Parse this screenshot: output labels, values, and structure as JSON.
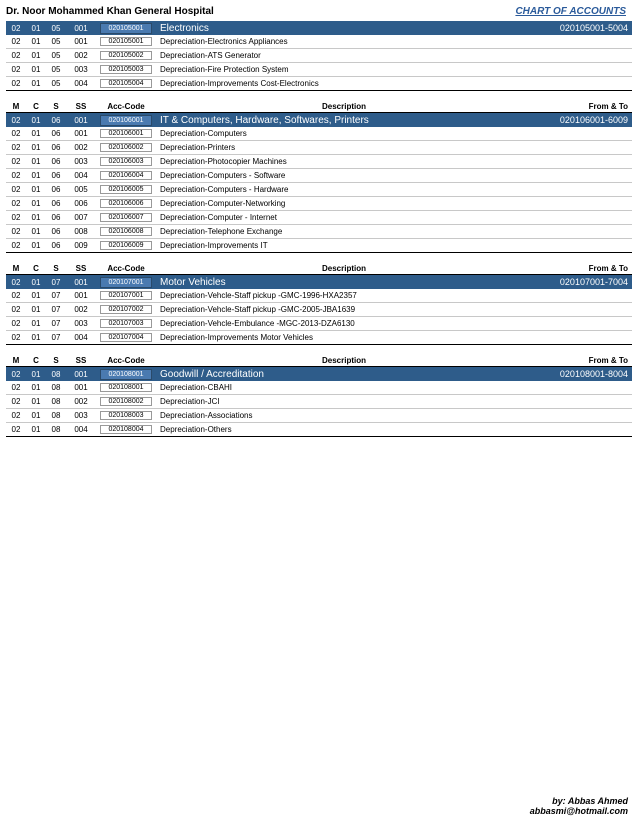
{
  "header": {
    "hospital_name": "Dr. Noor Mohammed Khan General Hospital",
    "doc_title": "CHART OF ACCOUNTS"
  },
  "columns": {
    "m": "M",
    "c": "C",
    "s": "S",
    "ss": "SS",
    "acc": "Acc-Code",
    "desc": "Description",
    "range": "From & To"
  },
  "sections": [
    {
      "has_header": false,
      "category": {
        "m": "02",
        "c": "01",
        "s": "05",
        "ss": "001",
        "acc": "020105001",
        "desc": "Electronics",
        "range": "020105001-5004"
      },
      "rows": [
        {
          "m": "02",
          "c": "01",
          "s": "05",
          "ss": "001",
          "acc": "020105001",
          "desc": "Depreciation-Electronics Appliances"
        },
        {
          "m": "02",
          "c": "01",
          "s": "05",
          "ss": "002",
          "acc": "020105002",
          "desc": "Depreciation-ATS Generator"
        },
        {
          "m": "02",
          "c": "01",
          "s": "05",
          "ss": "003",
          "acc": "020105003",
          "desc": "Depreciation-Fire Protection System"
        },
        {
          "m": "02",
          "c": "01",
          "s": "05",
          "ss": "004",
          "acc": "020105004",
          "desc": "Depreciation-Improvements Cost-Electronics"
        }
      ]
    },
    {
      "has_header": true,
      "category": {
        "m": "02",
        "c": "01",
        "s": "06",
        "ss": "001",
        "acc": "020106001",
        "desc": "IT & Computers, Hardware, Softwares, Printers",
        "range": "020106001-6009"
      },
      "rows": [
        {
          "m": "02",
          "c": "01",
          "s": "06",
          "ss": "001",
          "acc": "020106001",
          "desc": "Depreciation-Computers"
        },
        {
          "m": "02",
          "c": "01",
          "s": "06",
          "ss": "002",
          "acc": "020106002",
          "desc": "Depreciation-Printers"
        },
        {
          "m": "02",
          "c": "01",
          "s": "06",
          "ss": "003",
          "acc": "020106003",
          "desc": "Depreciation-Photocopier Machines"
        },
        {
          "m": "02",
          "c": "01",
          "s": "06",
          "ss": "004",
          "acc": "020106004",
          "desc": "Depreciation-Computers - Software"
        },
        {
          "m": "02",
          "c": "01",
          "s": "06",
          "ss": "005",
          "acc": "020106005",
          "desc": "Depreciation-Computers - Hardware"
        },
        {
          "m": "02",
          "c": "01",
          "s": "06",
          "ss": "006",
          "acc": "020106006",
          "desc": "Depreciation-Computer-Networking"
        },
        {
          "m": "02",
          "c": "01",
          "s": "06",
          "ss": "007",
          "acc": "020106007",
          "desc": "Depreciation-Computer - Internet"
        },
        {
          "m": "02",
          "c": "01",
          "s": "06",
          "ss": "008",
          "acc": "020106008",
          "desc": "Depreciation-Telephone Exchange"
        },
        {
          "m": "02",
          "c": "01",
          "s": "06",
          "ss": "009",
          "acc": "020106009",
          "desc": "Depreciation-Improvements IT"
        }
      ]
    },
    {
      "has_header": true,
      "category": {
        "m": "02",
        "c": "01",
        "s": "07",
        "ss": "001",
        "acc": "020107001",
        "desc": "Motor Vehicles",
        "range": "020107001-7004"
      },
      "rows": [
        {
          "m": "02",
          "c": "01",
          "s": "07",
          "ss": "001",
          "acc": "020107001",
          "desc": "Depreciation-Vehcle-Staff pickup -GMC-1996-HXA2357"
        },
        {
          "m": "02",
          "c": "01",
          "s": "07",
          "ss": "002",
          "acc": "020107002",
          "desc": "Depreciation-Vehcle-Staff pickup -GMC-2005-JBA1639"
        },
        {
          "m": "02",
          "c": "01",
          "s": "07",
          "ss": "003",
          "acc": "020107003",
          "desc": "Depreciation-Vehcle-Embulance -MGC-2013-DZA6130"
        },
        {
          "m": "02",
          "c": "01",
          "s": "07",
          "ss": "004",
          "acc": "020107004",
          "desc": "Depreciation-Improvements Motor Vehicles"
        }
      ]
    },
    {
      "has_header": true,
      "category": {
        "m": "02",
        "c": "01",
        "s": "08",
        "ss": "001",
        "acc": "020108001",
        "desc": "Goodwill / Accreditation",
        "range": "020108001-8004"
      },
      "rows": [
        {
          "m": "02",
          "c": "01",
          "s": "08",
          "ss": "001",
          "acc": "020108001",
          "desc": "Depreciation-CBAHI"
        },
        {
          "m": "02",
          "c": "01",
          "s": "08",
          "ss": "002",
          "acc": "020108002",
          "desc": "Depreciation-JCI"
        },
        {
          "m": "02",
          "c": "01",
          "s": "08",
          "ss": "003",
          "acc": "020108003",
          "desc": "Depreciation-Associations"
        },
        {
          "m": "02",
          "c": "01",
          "s": "08",
          "ss": "004",
          "acc": "020108004",
          "desc": "Depreciation-Others"
        }
      ]
    }
  ],
  "footer": {
    "by": "by: Abbas Ahmed",
    "email": "abbasmi@hotmail.com"
  }
}
